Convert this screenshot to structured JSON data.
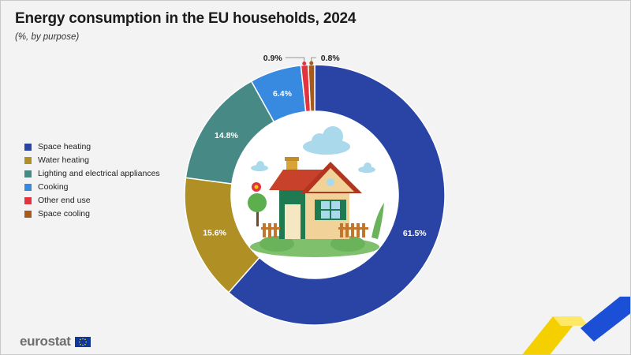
{
  "title": "Energy consumption in the EU households, 2024",
  "subtitle": "(%, by purpose)",
  "footer": {
    "logo_text": "eurostat"
  },
  "chart_data": {
    "type": "pie",
    "categories": [
      "Space heating",
      "Water heating",
      "Lighting and electrical appliances",
      "Cooking",
      "Other end use",
      "Space cooling"
    ],
    "values": [
      61.5,
      15.6,
      14.8,
      6.4,
      0.9,
      0.8
    ],
    "value_labels": [
      "61.5%",
      "15.6%",
      "14.8%",
      "6.4%",
      "0.9%",
      "0.8%"
    ],
    "colors": [
      "#2a44a6",
      "#b08f24",
      "#468985",
      "#378ae0",
      "#e2343e",
      "#a85a1a"
    ],
    "legend_position": "left"
  }
}
